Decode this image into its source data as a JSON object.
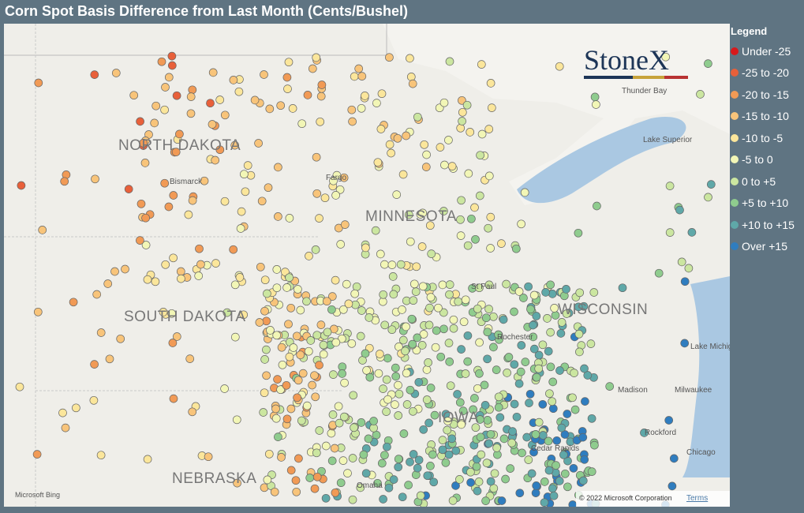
{
  "header": {
    "title": "Corn Spot Basis Difference from Last Month (Cents/Bushel)"
  },
  "legend": {
    "title": "Legend",
    "items": [
      {
        "label": "Under -25",
        "color": "#d7191c"
      },
      {
        "label": "-25 to -20",
        "color": "#e8603a"
      },
      {
        "label": "-20 to -15",
        "color": "#f19a55"
      },
      {
        "label": "-15 to -10",
        "color": "#f8c47a"
      },
      {
        "label": "-10 to -5",
        "color": "#fbe69b"
      },
      {
        "label": "-5 to 0",
        "color": "#f2f6b6"
      },
      {
        "label": "0 to +5",
        "color": "#cbe6a0"
      },
      {
        "label": "+5 to +10",
        "color": "#8fcc8e"
      },
      {
        "label": "+10 to +15",
        "color": "#5fa8a8"
      },
      {
        "label": "Over +15",
        "color": "#2f7dbf"
      }
    ]
  },
  "map": {
    "labels": [
      "NORTH DAKOTA",
      "MINNESOTA",
      "SOUTH DAKOTA",
      "WISCONSIN",
      "NEBRASKA",
      "IOWA",
      "Bismarck",
      "Fargo",
      "Thunder Bay",
      "Lake Superior",
      "Lake Michigan",
      "Milwaukee",
      "Chicago",
      "Rockford",
      "Madison",
      "Rochester",
      "St Paul",
      "Cedar Rapids",
      "Omaha"
    ],
    "logo": "StoneX",
    "copyright": "© 2022 Microsoft Corporation",
    "terms": "Terms",
    "provider": "Microsoft Bing"
  }
}
